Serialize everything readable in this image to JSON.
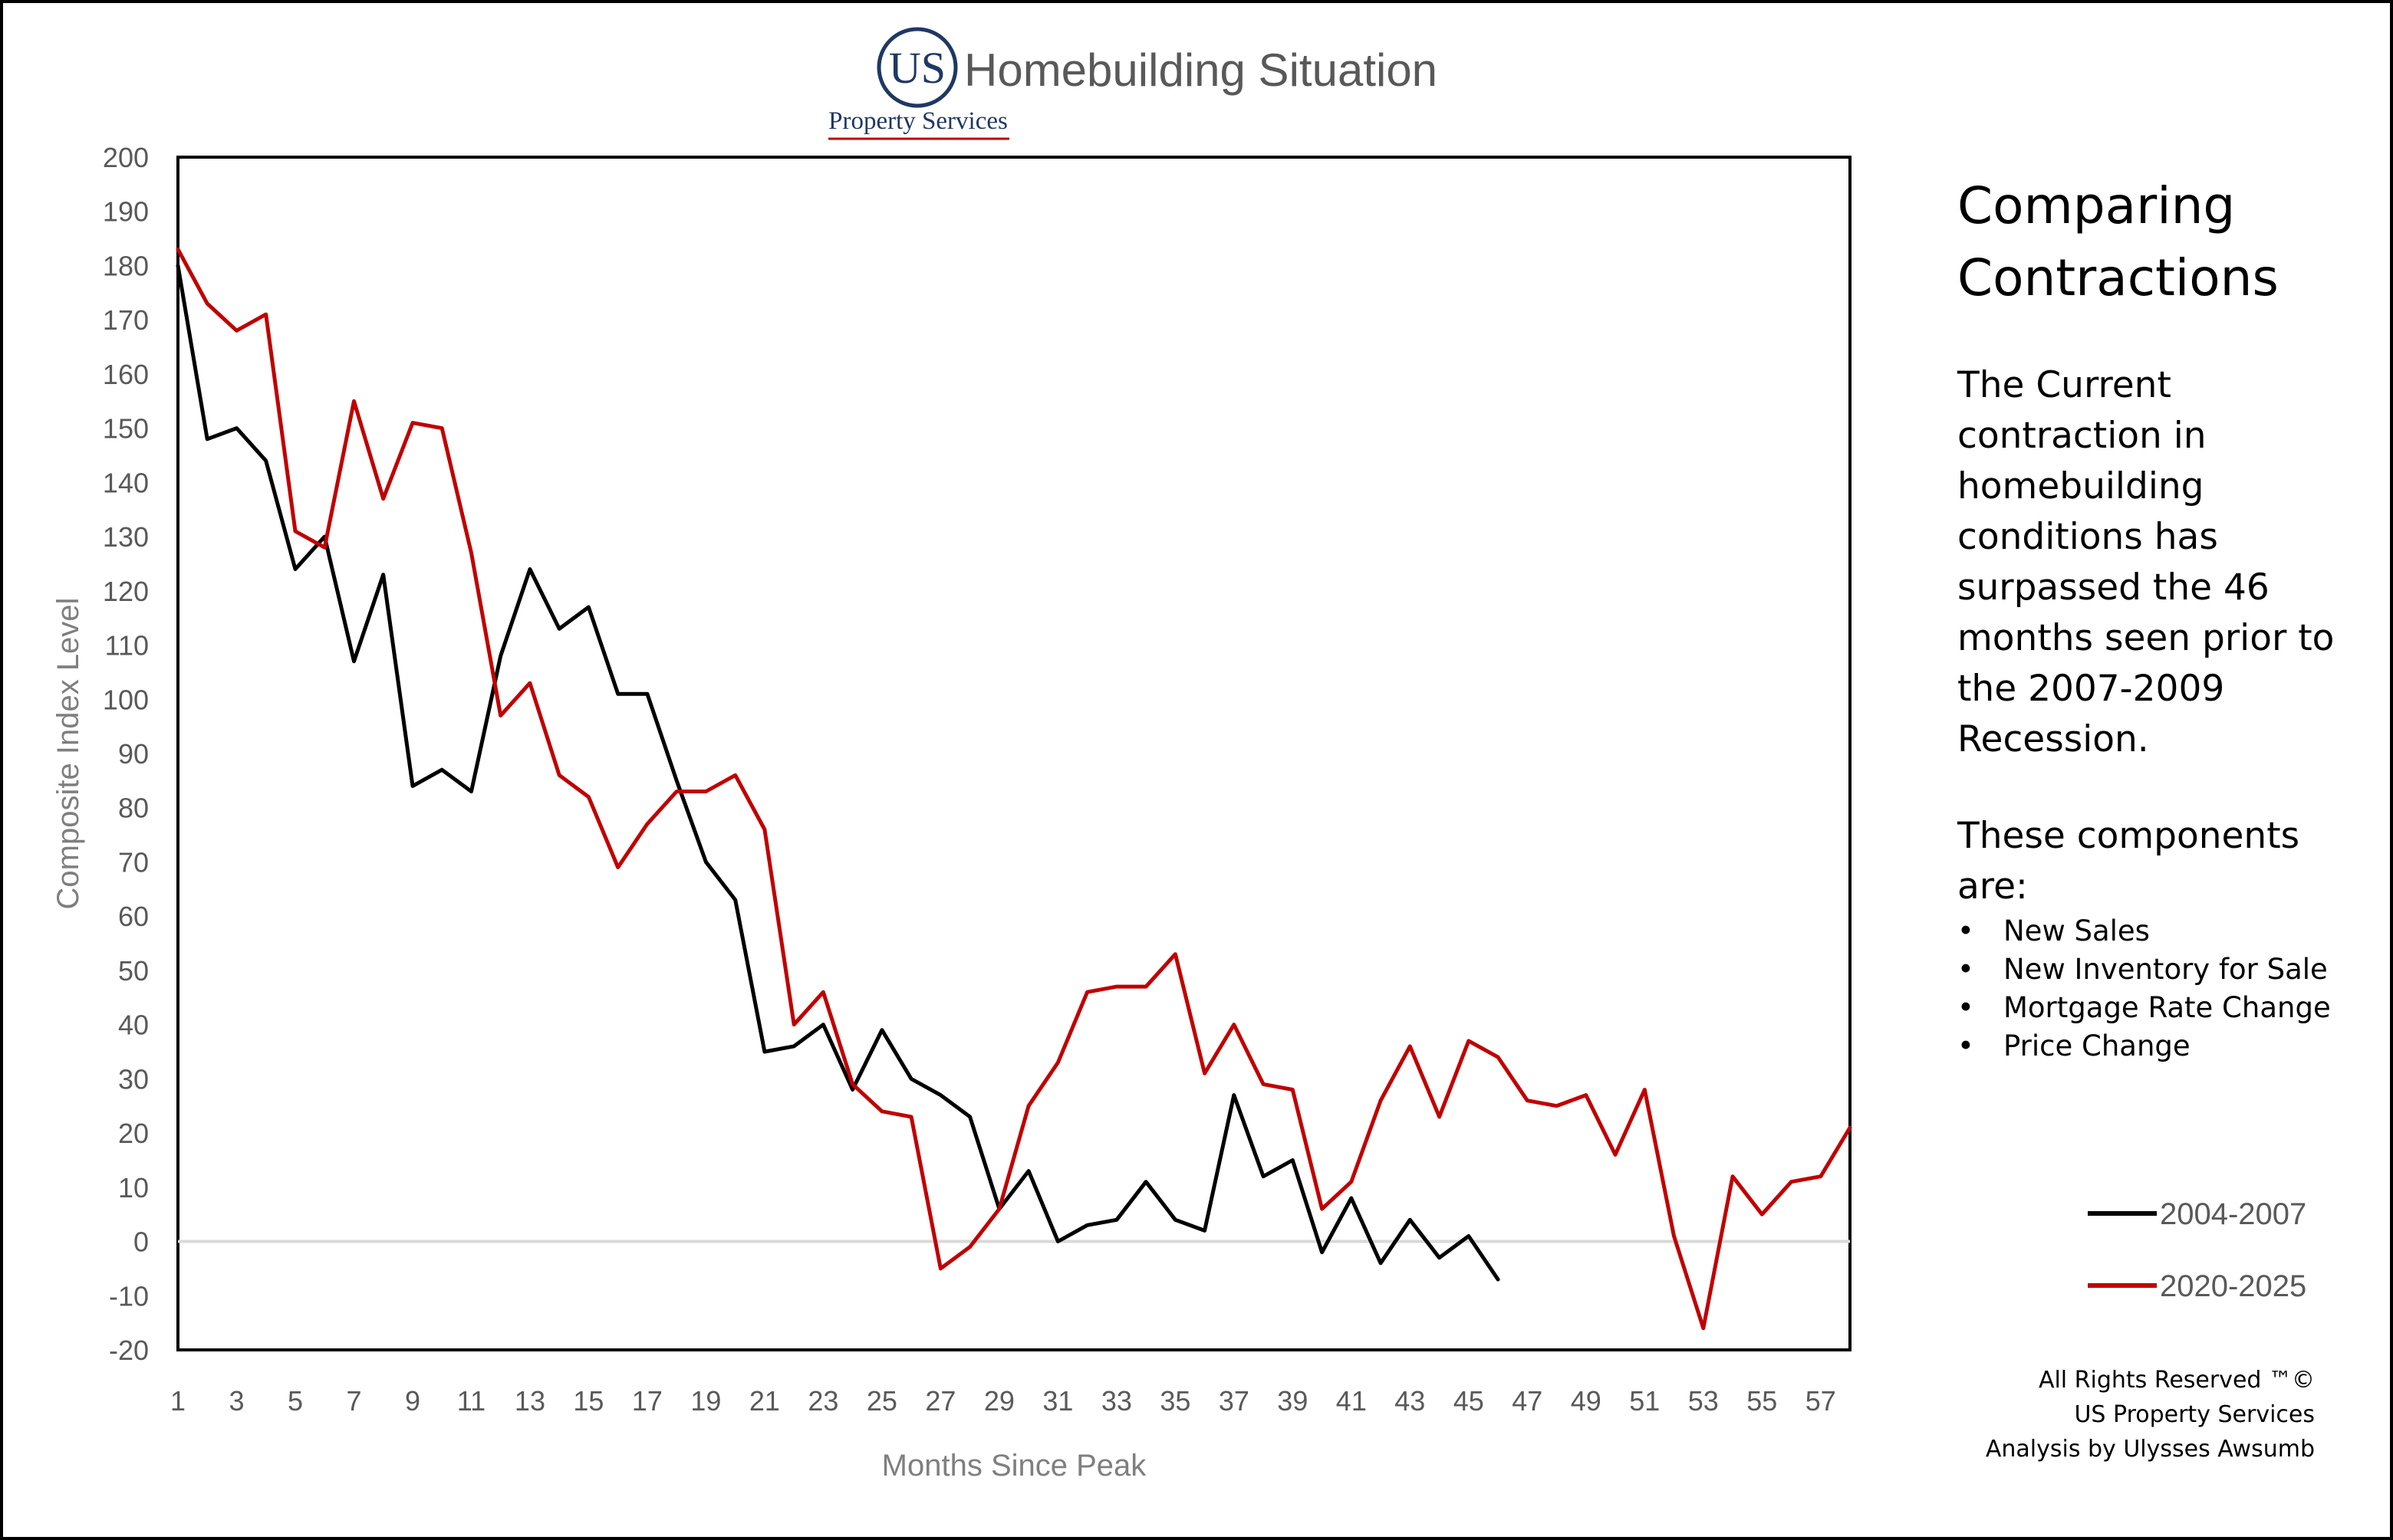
{
  "header": {
    "logo_mark": "US",
    "title": "Homebuilding Situation",
    "company": "Property Services"
  },
  "side_panel": {
    "heading_line1": "Comparing",
    "heading_line2": "Contractions",
    "body": "The Current contraction in homebuilding conditions has surpassed the 46 months seen prior to the 2007-2009 Recession.",
    "components_title": "These components are:",
    "components": [
      "New Sales",
      "New Inventory for Sale",
      "Mortgage Rate Change",
      "Price Change"
    ]
  },
  "footer": {
    "line1": "All Rights Reserved ™©",
    "line2": "US Property Services",
    "line3": "Analysis by Ulysses Awsumb"
  },
  "colors": {
    "series_2004_2007": "#000000",
    "series_2020_2025": "#c00000",
    "zero_line": "#d9d9d9",
    "brand_blue": "#1f3864",
    "brand_red": "#c00000"
  },
  "chart_data": {
    "type": "line",
    "title": "",
    "xlabel": "Months Since Peak",
    "ylabel": "Composite Index Level",
    "xlim": [
      1,
      58
    ],
    "ylim": [
      -20,
      200
    ],
    "y_ticks": [
      200,
      190,
      180,
      170,
      160,
      150,
      140,
      130,
      120,
      110,
      100,
      90,
      80,
      70,
      60,
      50,
      40,
      30,
      20,
      10,
      0,
      -10,
      -20
    ],
    "x_ticks": [
      1,
      3,
      5,
      7,
      9,
      11,
      13,
      15,
      17,
      19,
      21,
      23,
      25,
      27,
      29,
      31,
      33,
      35,
      37,
      39,
      41,
      43,
      45,
      47,
      49,
      51,
      53,
      55,
      57
    ],
    "zero_line": true,
    "grid": false,
    "legend_position": "right",
    "series": [
      {
        "name": "2004-2007",
        "x_start": 1,
        "values": [
          180,
          148,
          150,
          144,
          124,
          130,
          107,
          123,
          84,
          87,
          83,
          108,
          124,
          113,
          117,
          101,
          101,
          85,
          70,
          63,
          35,
          36,
          40,
          28,
          39,
          30,
          27,
          23,
          6,
          13,
          0,
          3,
          4,
          11,
          4,
          2,
          27,
          12,
          15,
          -2,
          8,
          -4,
          4,
          -3,
          1,
          -7
        ]
      },
      {
        "name": "2020-2025",
        "x_start": 1,
        "values": [
          183,
          173,
          168,
          171,
          131,
          128,
          155,
          137,
          151,
          150,
          127,
          97,
          103,
          86,
          82,
          69,
          77,
          83,
          83,
          86,
          76,
          40,
          46,
          29,
          24,
          23,
          -5,
          -1,
          6,
          25,
          33,
          46,
          47,
          47,
          53,
          31,
          40,
          29,
          28,
          6,
          11,
          26,
          36,
          23,
          37,
          34,
          26,
          25,
          27,
          16,
          28,
          1,
          -16,
          12,
          5,
          11,
          12,
          21
        ]
      }
    ]
  }
}
